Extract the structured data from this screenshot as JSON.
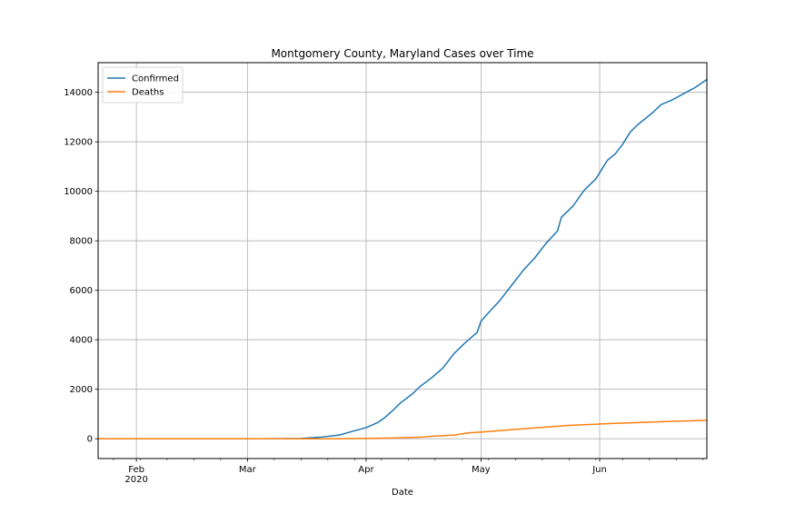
{
  "chart_data": {
    "type": "line",
    "title": "Montgomery County, Maryland Cases over Time",
    "xlabel": "Date",
    "ylabel": "",
    "grid": true,
    "legend_placement": "top-left",
    "xlim": [
      "2020-01-22",
      "2020-06-29"
    ],
    "ylim": [
      -800,
      15200
    ],
    "x_ticks": [
      {
        "date": "2020-02-01",
        "label": "Feb",
        "sublabel": "2020"
      },
      {
        "date": "2020-03-01",
        "label": "Mar",
        "sublabel": ""
      },
      {
        "date": "2020-04-01",
        "label": "Apr",
        "sublabel": ""
      },
      {
        "date": "2020-05-01",
        "label": "May",
        "sublabel": ""
      },
      {
        "date": "2020-06-01",
        "label": "Jun",
        "sublabel": ""
      }
    ],
    "y_ticks": [
      0,
      2000,
      4000,
      6000,
      8000,
      10000,
      12000,
      14000
    ],
    "series": [
      {
        "name": "Confirmed",
        "color": "#1f77b4",
        "points": [
          [
            "2020-01-22",
            0
          ],
          [
            "2020-03-05",
            0
          ],
          [
            "2020-03-15",
            10
          ],
          [
            "2020-03-20",
            60
          ],
          [
            "2020-03-25",
            150
          ],
          [
            "2020-03-28",
            280
          ],
          [
            "2020-04-01",
            450
          ],
          [
            "2020-04-04",
            650
          ],
          [
            "2020-04-06",
            870
          ],
          [
            "2020-04-08",
            1150
          ],
          [
            "2020-04-10",
            1450
          ],
          [
            "2020-04-13",
            1800
          ],
          [
            "2020-04-15",
            2100
          ],
          [
            "2020-04-18",
            2450
          ],
          [
            "2020-04-21",
            2850
          ],
          [
            "2020-04-24",
            3450
          ],
          [
            "2020-04-27",
            3900
          ],
          [
            "2020-04-30",
            4300
          ],
          [
            "2020-05-01",
            4750
          ],
          [
            "2020-05-03",
            5100
          ],
          [
            "2020-05-06",
            5600
          ],
          [
            "2020-05-09",
            6200
          ],
          [
            "2020-05-12",
            6800
          ],
          [
            "2020-05-15",
            7300
          ],
          [
            "2020-05-18",
            7900
          ],
          [
            "2020-05-21",
            8400
          ],
          [
            "2020-05-22",
            8950
          ],
          [
            "2020-05-25",
            9400
          ],
          [
            "2020-05-28",
            10050
          ],
          [
            "2020-05-31",
            10500
          ],
          [
            "2020-06-03",
            11250
          ],
          [
            "2020-06-05",
            11500
          ],
          [
            "2020-06-07",
            11900
          ],
          [
            "2020-06-09",
            12400
          ],
          [
            "2020-06-11",
            12700
          ],
          [
            "2020-06-13",
            12950
          ],
          [
            "2020-06-15",
            13200
          ],
          [
            "2020-06-17",
            13500
          ],
          [
            "2020-06-20",
            13700
          ],
          [
            "2020-06-23",
            13950
          ],
          [
            "2020-06-26",
            14200
          ],
          [
            "2020-06-29",
            14520
          ]
        ]
      },
      {
        "name": "Deaths",
        "color": "#ff7f0e",
        "points": [
          [
            "2020-01-22",
            0
          ],
          [
            "2020-03-25",
            0
          ],
          [
            "2020-04-01",
            10
          ],
          [
            "2020-04-08",
            30
          ],
          [
            "2020-04-15",
            60
          ],
          [
            "2020-04-18",
            100
          ],
          [
            "2020-04-24",
            150
          ],
          [
            "2020-04-28",
            240
          ],
          [
            "2020-05-01",
            270
          ],
          [
            "2020-05-06",
            330
          ],
          [
            "2020-05-12",
            400
          ],
          [
            "2020-05-18",
            470
          ],
          [
            "2020-05-24",
            540
          ],
          [
            "2020-05-30",
            580
          ],
          [
            "2020-06-05",
            620
          ],
          [
            "2020-06-12",
            660
          ],
          [
            "2020-06-19",
            700
          ],
          [
            "2020-06-29",
            745
          ]
        ]
      }
    ]
  }
}
